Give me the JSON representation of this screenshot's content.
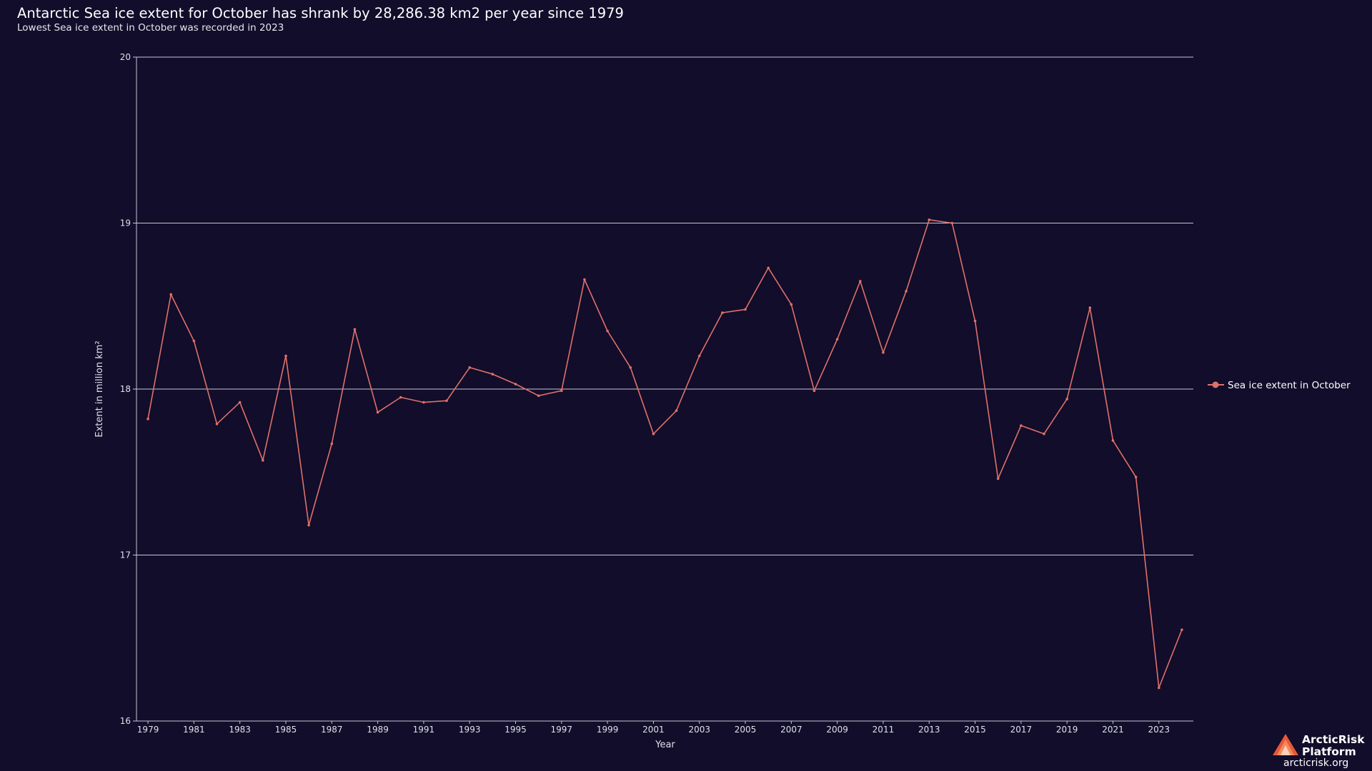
{
  "header": {
    "title": "Antarctic Sea ice extent for October has shrank by 28,286.38 km2 per year since 1979",
    "subtitle": "Lowest Sea ice extent in October was recorded in 2023"
  },
  "branding": {
    "name_line1": "ArcticRisk",
    "name_line2": "Platform",
    "url": "arcticrisk.org"
  },
  "colors": {
    "background": "#110d2a",
    "series": "#e0706a",
    "grid": "#c8c8d4"
  },
  "chart_data": {
    "type": "line",
    "title": "Antarctic Sea ice extent for October has shrank by 28,286.38 km2 per year since 1979",
    "subtitle": "Lowest Sea ice extent in October was recorded in 2023",
    "xlabel": "Year",
    "ylabel": "Extent in million km²",
    "xlim": [
      1978.5,
      2024.5
    ],
    "ylim": [
      16,
      20
    ],
    "yticks": [
      16,
      17,
      18,
      19,
      20
    ],
    "xticks": [
      1979,
      1981,
      1983,
      1985,
      1987,
      1989,
      1991,
      1993,
      1995,
      1997,
      1999,
      2001,
      2003,
      2005,
      2007,
      2009,
      2011,
      2013,
      2015,
      2017,
      2019,
      2021,
      2023
    ],
    "grid": "horizontal",
    "legend_position": "right",
    "x": [
      1979,
      1980,
      1981,
      1982,
      1983,
      1984,
      1985,
      1986,
      1987,
      1988,
      1989,
      1990,
      1991,
      1992,
      1993,
      1994,
      1995,
      1996,
      1997,
      1998,
      1999,
      2000,
      2001,
      2002,
      2003,
      2004,
      2005,
      2006,
      2007,
      2008,
      2009,
      2010,
      2011,
      2012,
      2013,
      2014,
      2015,
      2016,
      2017,
      2018,
      2019,
      2020,
      2021,
      2022,
      2023,
      2024
    ],
    "series": [
      {
        "name": "Sea ice extent in October",
        "color": "#e0706a",
        "values": [
          17.82,
          18.57,
          18.29,
          17.79,
          17.92,
          17.57,
          18.2,
          17.18,
          17.67,
          18.36,
          17.86,
          17.95,
          17.92,
          17.93,
          18.13,
          18.09,
          18.03,
          17.96,
          17.99,
          18.66,
          18.35,
          18.13,
          17.73,
          17.87,
          18.2,
          18.46,
          18.48,
          18.73,
          18.51,
          17.99,
          18.3,
          18.65,
          18.22,
          18.59,
          19.02,
          19.0,
          18.41,
          17.46,
          17.78,
          17.73,
          17.94,
          18.49,
          17.69,
          17.47,
          16.2,
          16.55
        ]
      }
    ]
  }
}
